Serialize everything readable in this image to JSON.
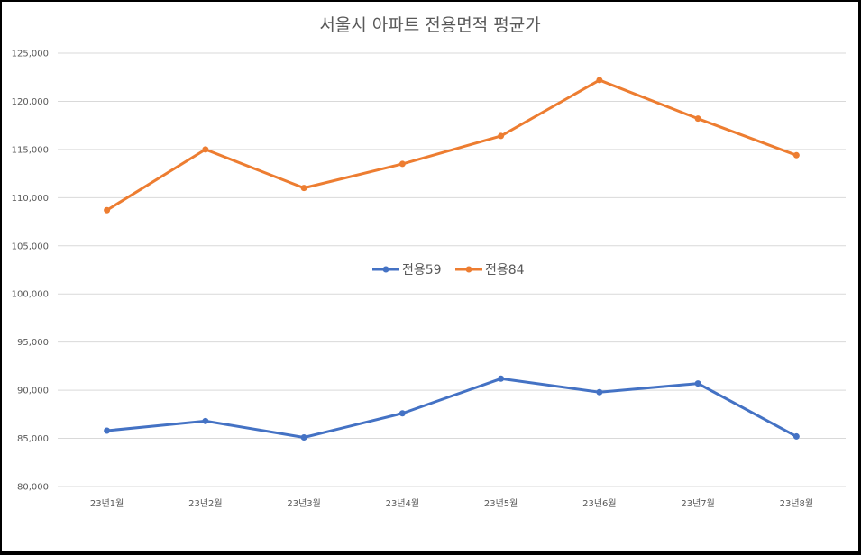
{
  "colors": {
    "series_59": "#4472c4",
    "series_84": "#ed7d31",
    "grid": "#d9d9d9",
    "text": "#595959"
  },
  "chart_data": {
    "type": "line",
    "title": "서울시 아파트 전용면적 평균가",
    "xlabel": "",
    "ylabel": "",
    "categories": [
      "23년1월",
      "23년2월",
      "23년3월",
      "23년4월",
      "23년5월",
      "23년6월",
      "23년7월",
      "23년8월"
    ],
    "ylim": [
      80000,
      125000
    ],
    "yticks": [
      "80,000",
      "85,000",
      "90,000",
      "95,000",
      "100,000",
      "105,000",
      "110,000",
      "115,000",
      "120,000",
      "125,000"
    ],
    "ytick_values": [
      80000,
      85000,
      90000,
      95000,
      100000,
      105000,
      110000,
      115000,
      120000,
      125000
    ],
    "grid": true,
    "legend_position": "center",
    "series": [
      {
        "name": "전용59",
        "values": [
          85800,
          86800,
          85100,
          87600,
          91200,
          89800,
          90700,
          85200
        ]
      },
      {
        "name": "전용84",
        "values": [
          108700,
          115000,
          111000,
          113500,
          116400,
          122200,
          118200,
          114400
        ]
      }
    ]
  }
}
